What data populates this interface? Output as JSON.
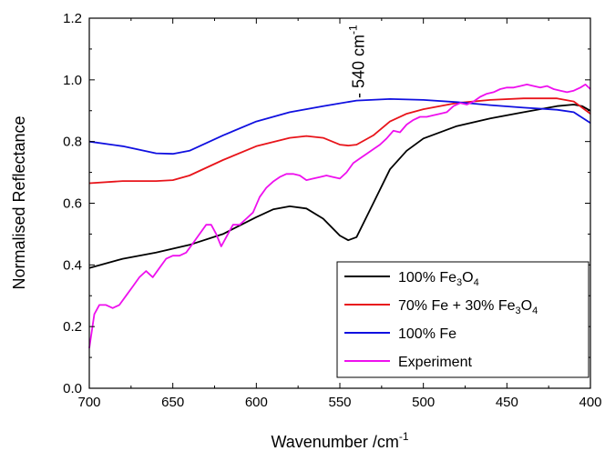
{
  "chart_data": {
    "type": "line",
    "xlabel": "Wavenumber /cm",
    "xlabel_sup": "-1",
    "ylabel": "Normalised Reflectance",
    "xlim": [
      700,
      400
    ],
    "ylim": [
      0.0,
      1.2
    ],
    "x_reversed": true,
    "xticks": [
      700,
      650,
      600,
      550,
      500,
      450,
      400
    ],
    "xtick_labels": [
      "700",
      "650",
      "600",
      "550",
      "500",
      "450",
      "400"
    ],
    "yticks": [
      0.0,
      0.2,
      0.4,
      0.6,
      0.8,
      1.0,
      1.2
    ],
    "ytick_labels": [
      "0.0",
      "0.2",
      "0.4",
      "0.6",
      "0.8",
      "1.0",
      "1.2"
    ],
    "grid": false,
    "legend_position": "bottom-right",
    "annotation": {
      "text": "- 540 cm",
      "sup": "-1",
      "x": 540
    },
    "series": [
      {
        "name": "100% Fe",
        "legend_parts": [
          [
            "100% Fe",
            "normal"
          ],
          [
            "3",
            "sub"
          ],
          [
            "O",
            "normal"
          ],
          [
            "4",
            "sub"
          ]
        ],
        "color": "#000000",
        "points": [
          [
            700,
            0.39
          ],
          [
            680,
            0.42
          ],
          [
            660,
            0.44
          ],
          [
            640,
            0.465
          ],
          [
            620,
            0.5
          ],
          [
            600,
            0.555
          ],
          [
            590,
            0.58
          ],
          [
            580,
            0.59
          ],
          [
            570,
            0.583
          ],
          [
            560,
            0.55
          ],
          [
            550,
            0.495
          ],
          [
            545,
            0.48
          ],
          [
            540,
            0.49
          ],
          [
            530,
            0.6
          ],
          [
            520,
            0.71
          ],
          [
            510,
            0.77
          ],
          [
            500,
            0.81
          ],
          [
            480,
            0.85
          ],
          [
            460,
            0.875
          ],
          [
            440,
            0.895
          ],
          [
            420,
            0.915
          ],
          [
            410,
            0.92
          ],
          [
            405,
            0.915
          ],
          [
            400,
            0.9
          ]
        ]
      },
      {
        "name": "70% Fe + 30% Fe",
        "legend_parts": [
          [
            "70% Fe + 30% Fe",
            "normal"
          ],
          [
            "3",
            "sub"
          ],
          [
            "O",
            "normal"
          ],
          [
            "4",
            "sub"
          ]
        ],
        "color": "#e8141a",
        "points": [
          [
            700,
            0.665
          ],
          [
            680,
            0.672
          ],
          [
            660,
            0.672
          ],
          [
            650,
            0.675
          ],
          [
            640,
            0.69
          ],
          [
            620,
            0.74
          ],
          [
            600,
            0.785
          ],
          [
            580,
            0.812
          ],
          [
            570,
            0.818
          ],
          [
            560,
            0.812
          ],
          [
            550,
            0.79
          ],
          [
            545,
            0.787
          ],
          [
            540,
            0.79
          ],
          [
            530,
            0.82
          ],
          [
            520,
            0.865
          ],
          [
            510,
            0.89
          ],
          [
            500,
            0.905
          ],
          [
            480,
            0.925
          ],
          [
            460,
            0.935
          ],
          [
            440,
            0.94
          ],
          [
            420,
            0.94
          ],
          [
            410,
            0.93
          ],
          [
            400,
            0.89
          ]
        ]
      },
      {
        "name": "100% Fe",
        "legend_parts": [
          [
            "100% Fe",
            "normal"
          ]
        ],
        "color": "#1010e0",
        "points": [
          [
            700,
            0.8
          ],
          [
            680,
            0.785
          ],
          [
            660,
            0.762
          ],
          [
            650,
            0.76
          ],
          [
            640,
            0.77
          ],
          [
            620,
            0.82
          ],
          [
            600,
            0.865
          ],
          [
            580,
            0.895
          ],
          [
            560,
            0.915
          ],
          [
            540,
            0.933
          ],
          [
            520,
            0.938
          ],
          [
            500,
            0.935
          ],
          [
            480,
            0.928
          ],
          [
            460,
            0.918
          ],
          [
            440,
            0.91
          ],
          [
            420,
            0.903
          ],
          [
            410,
            0.895
          ],
          [
            400,
            0.86
          ]
        ]
      },
      {
        "name": "Experiment",
        "legend_parts": [
          [
            "Experiment",
            "normal"
          ]
        ],
        "color": "#ee10ee",
        "points": [
          [
            700,
            0.13
          ],
          [
            697,
            0.24
          ],
          [
            694,
            0.27
          ],
          [
            690,
            0.27
          ],
          [
            686,
            0.26
          ],
          [
            682,
            0.27
          ],
          [
            678,
            0.3
          ],
          [
            674,
            0.33
          ],
          [
            670,
            0.36
          ],
          [
            666,
            0.38
          ],
          [
            662,
            0.36
          ],
          [
            658,
            0.39
          ],
          [
            654,
            0.42
          ],
          [
            650,
            0.43
          ],
          [
            646,
            0.43
          ],
          [
            642,
            0.44
          ],
          [
            638,
            0.47
          ],
          [
            634,
            0.5
          ],
          [
            630,
            0.53
          ],
          [
            627,
            0.53
          ],
          [
            624,
            0.5
          ],
          [
            621,
            0.46
          ],
          [
            618,
            0.49
          ],
          [
            614,
            0.53
          ],
          [
            610,
            0.53
          ],
          [
            606,
            0.55
          ],
          [
            602,
            0.57
          ],
          [
            598,
            0.62
          ],
          [
            594,
            0.65
          ],
          [
            590,
            0.67
          ],
          [
            586,
            0.685
          ],
          [
            582,
            0.695
          ],
          [
            578,
            0.695
          ],
          [
            574,
            0.69
          ],
          [
            570,
            0.675
          ],
          [
            566,
            0.68
          ],
          [
            562,
            0.685
          ],
          [
            558,
            0.69
          ],
          [
            554,
            0.685
          ],
          [
            550,
            0.68
          ],
          [
            546,
            0.7
          ],
          [
            542,
            0.73
          ],
          [
            538,
            0.745
          ],
          [
            534,
            0.76
          ],
          [
            530,
            0.775
          ],
          [
            526,
            0.79
          ],
          [
            522,
            0.81
          ],
          [
            518,
            0.835
          ],
          [
            514,
            0.83
          ],
          [
            510,
            0.855
          ],
          [
            506,
            0.87
          ],
          [
            502,
            0.88
          ],
          [
            498,
            0.88
          ],
          [
            494,
            0.885
          ],
          [
            490,
            0.89
          ],
          [
            486,
            0.895
          ],
          [
            482,
            0.915
          ],
          [
            478,
            0.925
          ],
          [
            474,
            0.92
          ],
          [
            470,
            0.93
          ],
          [
            466,
            0.945
          ],
          [
            462,
            0.955
          ],
          [
            458,
            0.96
          ],
          [
            454,
            0.97
          ],
          [
            450,
            0.975
          ],
          [
            446,
            0.975
          ],
          [
            442,
            0.98
          ],
          [
            438,
            0.985
          ],
          [
            434,
            0.98
          ],
          [
            430,
            0.975
          ],
          [
            426,
            0.98
          ],
          [
            422,
            0.97
          ],
          [
            418,
            0.965
          ],
          [
            414,
            0.96
          ],
          [
            410,
            0.965
          ],
          [
            406,
            0.975
          ],
          [
            403,
            0.985
          ],
          [
            400,
            0.97
          ]
        ]
      }
    ]
  }
}
